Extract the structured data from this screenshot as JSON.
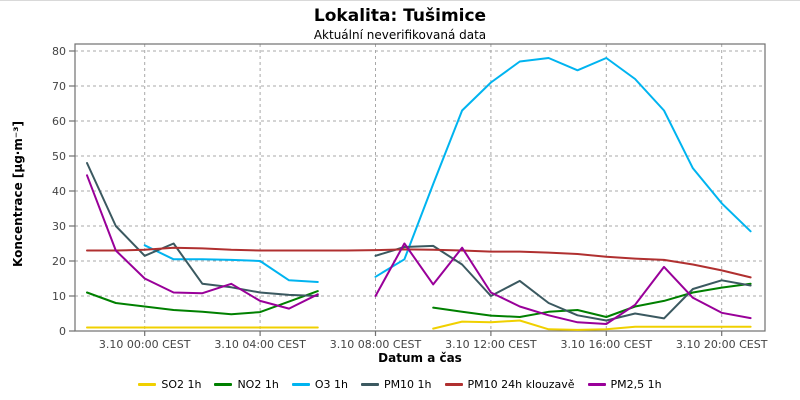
{
  "chart_data": {
    "type": "line",
    "title": "Lokalita: Tušimice",
    "subtitle": "Aktuální neverifikovaná data",
    "xlabel": "Datum a čas",
    "ylabel": "Koncentrace [µg·m⁻³]",
    "ylim": [
      0,
      80
    ],
    "y_ticks": [
      0,
      10,
      20,
      30,
      40,
      50,
      60,
      70,
      80
    ],
    "grid": true,
    "legend_position": "bottom",
    "x_categories": [
      "2.10 22:00",
      "2.10 23:00",
      "3.10 00:00",
      "3.10 01:00",
      "3.10 02:00",
      "3.10 03:00",
      "3.10 04:00",
      "3.10 05:00",
      "3.10 06:00",
      "3.10 07:00",
      "3.10 08:00",
      "3.10 09:00",
      "3.10 10:00",
      "3.10 11:00",
      "3.10 12:00",
      "3.10 13:00",
      "3.10 14:00",
      "3.10 15:00",
      "3.10 16:00",
      "3.10 17:00",
      "3.10 18:00",
      "3.10 19:00",
      "3.10 20:00",
      "3.10 21:00"
    ],
    "x_tick_labels": [
      {
        "index": 2,
        "label": "3.10 00:00 CEST"
      },
      {
        "index": 6,
        "label": "3.10 04:00 CEST"
      },
      {
        "index": 10,
        "label": "3.10 08:00 CEST"
      },
      {
        "index": 14,
        "label": "3.10 12:00 CEST"
      },
      {
        "index": 18,
        "label": "3.10 16:00 CEST"
      },
      {
        "index": 22,
        "label": "3.10 20:00 CEST"
      }
    ],
    "series": [
      {
        "name": "SO2 1h",
        "color": "#f0d000",
        "values": [
          1,
          1,
          1,
          1,
          1,
          1,
          1,
          1,
          1,
          null,
          null,
          null,
          0.7,
          2.7,
          2.5,
          3,
          0.5,
          0.3,
          0.5,
          1.2,
          1.2,
          1.2,
          1.2,
          1.2
        ]
      },
      {
        "name": "NO2 1h",
        "color": "#008000",
        "values": [
          11,
          8,
          7,
          6,
          5.5,
          4.8,
          5.4,
          8.4,
          11.4,
          null,
          null,
          null,
          6.7,
          5.5,
          4.4,
          4,
          5.5,
          6,
          4,
          7,
          8.6,
          11,
          12.4,
          13.5
        ]
      },
      {
        "name": "O3 1h",
        "color": "#00b4f0",
        "values": [
          null,
          null,
          24.5,
          20.5,
          20.5,
          20.3,
          20,
          14.5,
          14,
          null,
          15.5,
          20.5,
          42,
          63,
          71,
          77,
          78,
          74.5,
          78,
          72,
          63,
          46.5,
          36.5,
          28.5
        ]
      },
      {
        "name": "PM10 1h",
        "color": "#3b5960",
        "values": [
          48,
          30,
          21.5,
          25,
          13.5,
          12.5,
          11,
          10.3,
          10,
          null,
          21.5,
          24,
          24.3,
          19,
          10,
          14.3,
          8,
          4.5,
          3,
          5,
          3.6,
          12,
          14.5,
          13
        ]
      },
      {
        "name": "PM10 24h klouzavě",
        "color": "#b03030",
        "values": [
          23,
          23,
          23.2,
          23.8,
          23.6,
          23.2,
          23,
          23,
          23,
          23,
          23.1,
          23.3,
          23.2,
          23,
          22.7,
          22.7,
          22.4,
          22,
          21.2,
          20.7,
          20.3,
          19,
          17.3,
          15.3
        ]
      },
      {
        "name": "PM2,5 1h",
        "color": "#990099",
        "values": [
          44.5,
          23,
          15,
          11,
          10.8,
          13.5,
          8.6,
          6.4,
          10.5,
          null,
          10,
          25,
          13.3,
          23.8,
          11,
          7,
          4.5,
          2.5,
          2,
          7.5,
          18.3,
          9.5,
          5.2,
          3.7
        ]
      }
    ],
    "axis_color": "#707070",
    "grid_color": "#a8a8a8",
    "tick_text_color": "#444444"
  }
}
